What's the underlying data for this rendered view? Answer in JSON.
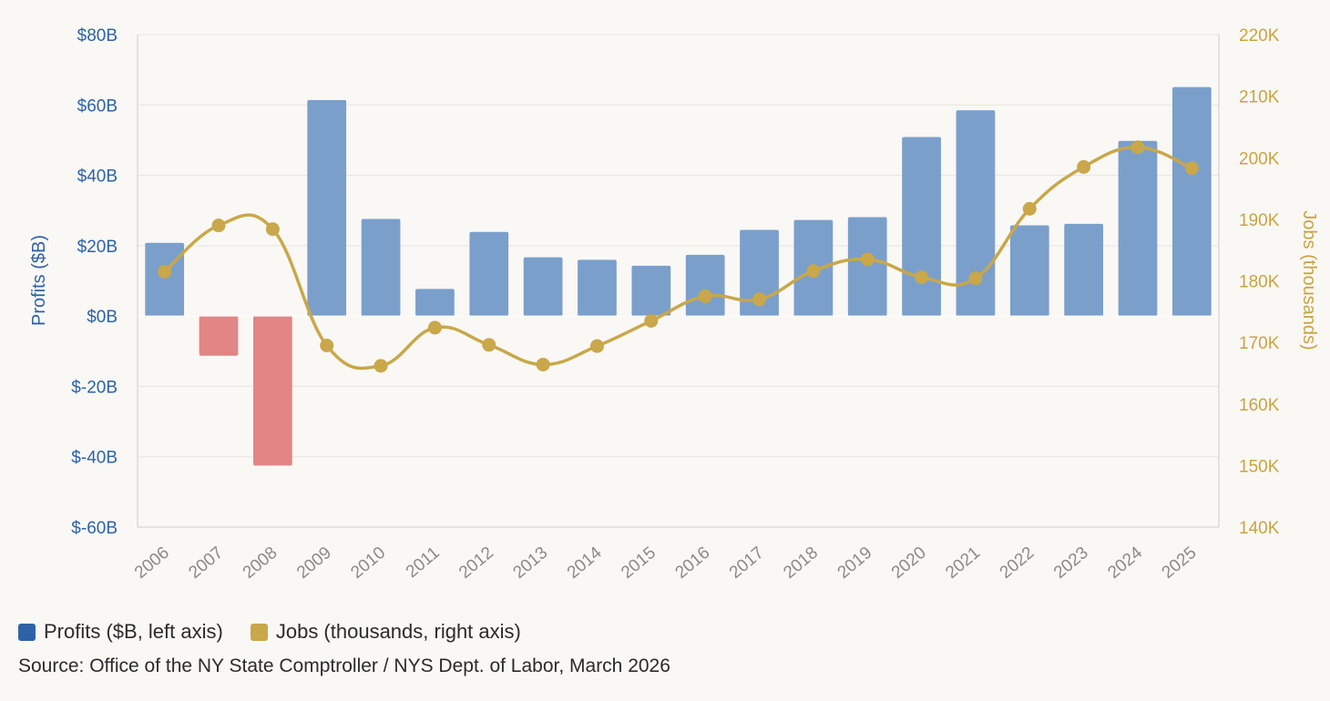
{
  "chart_data": {
    "type": "bar+line",
    "categories": [
      "2006",
      "2007",
      "2008",
      "2009",
      "2010",
      "2011",
      "2012",
      "2013",
      "2014",
      "2015",
      "2016",
      "2017",
      "2018",
      "2019",
      "2020",
      "2021",
      "2022",
      "2023",
      "2024",
      "2025"
    ],
    "series": [
      {
        "name": "Profits ($B, left axis)",
        "type": "bar",
        "axis": "left",
        "values": [
          20.8,
          -11.3,
          -42.5,
          61.4,
          27.6,
          7.7,
          23.9,
          16.7,
          16.0,
          14.3,
          17.4,
          24.5,
          27.3,
          28.1,
          50.9,
          58.5,
          25.8,
          26.2,
          49.8,
          65.1
        ]
      },
      {
        "name": "Jobs (thousands, right axis)",
        "type": "line",
        "axis": "right",
        "values": [
          181.5,
          189.0,
          188.4,
          169.5,
          166.2,
          172.4,
          169.6,
          166.4,
          169.4,
          173.5,
          177.5,
          177.0,
          181.6,
          183.5,
          180.6,
          180.4,
          191.7,
          198.5,
          201.7,
          198.3
        ]
      }
    ],
    "left_axis": {
      "label": "Profits ($B)",
      "min": -60,
      "max": 80,
      "ticks": [
        -60,
        -40,
        -20,
        0,
        20,
        40,
        60,
        80
      ],
      "tick_labels": [
        "$-60B",
        "$-40B",
        "$-20B",
        "$0B",
        "$20B",
        "$40B",
        "$60B",
        "$80B"
      ]
    },
    "right_axis": {
      "label": "Jobs (thousands)",
      "min": 140,
      "max": 220,
      "ticks": [
        140,
        150,
        160,
        170,
        180,
        190,
        200,
        210,
        220
      ],
      "tick_labels": [
        "140K",
        "150K",
        "160K",
        "170K",
        "180K",
        "190K",
        "200K",
        "210K",
        "220K"
      ]
    },
    "grid": true,
    "legend_position": "bottom-left"
  },
  "colors": {
    "positive_bar": "#7b9fcb",
    "negative_bar": "#e18585",
    "line": "#c9a74a",
    "left_axis_text": "#2e62a6",
    "right_axis_text": "#c9a43f",
    "x_tick_text": "#8a8a8a",
    "grid": "#e7e5e0",
    "axis_line": "#cfcdc8",
    "legend_profits_swatch": "#2e62a6",
    "legend_jobs_swatch": "#c9a74a"
  },
  "legend": {
    "profits_label": "Profits ($B, left axis)",
    "jobs_label": "Jobs (thousands, right axis)"
  },
  "source": "Source: Office of the NY State Comptroller / NYS Dept. of Labor, March 2026"
}
